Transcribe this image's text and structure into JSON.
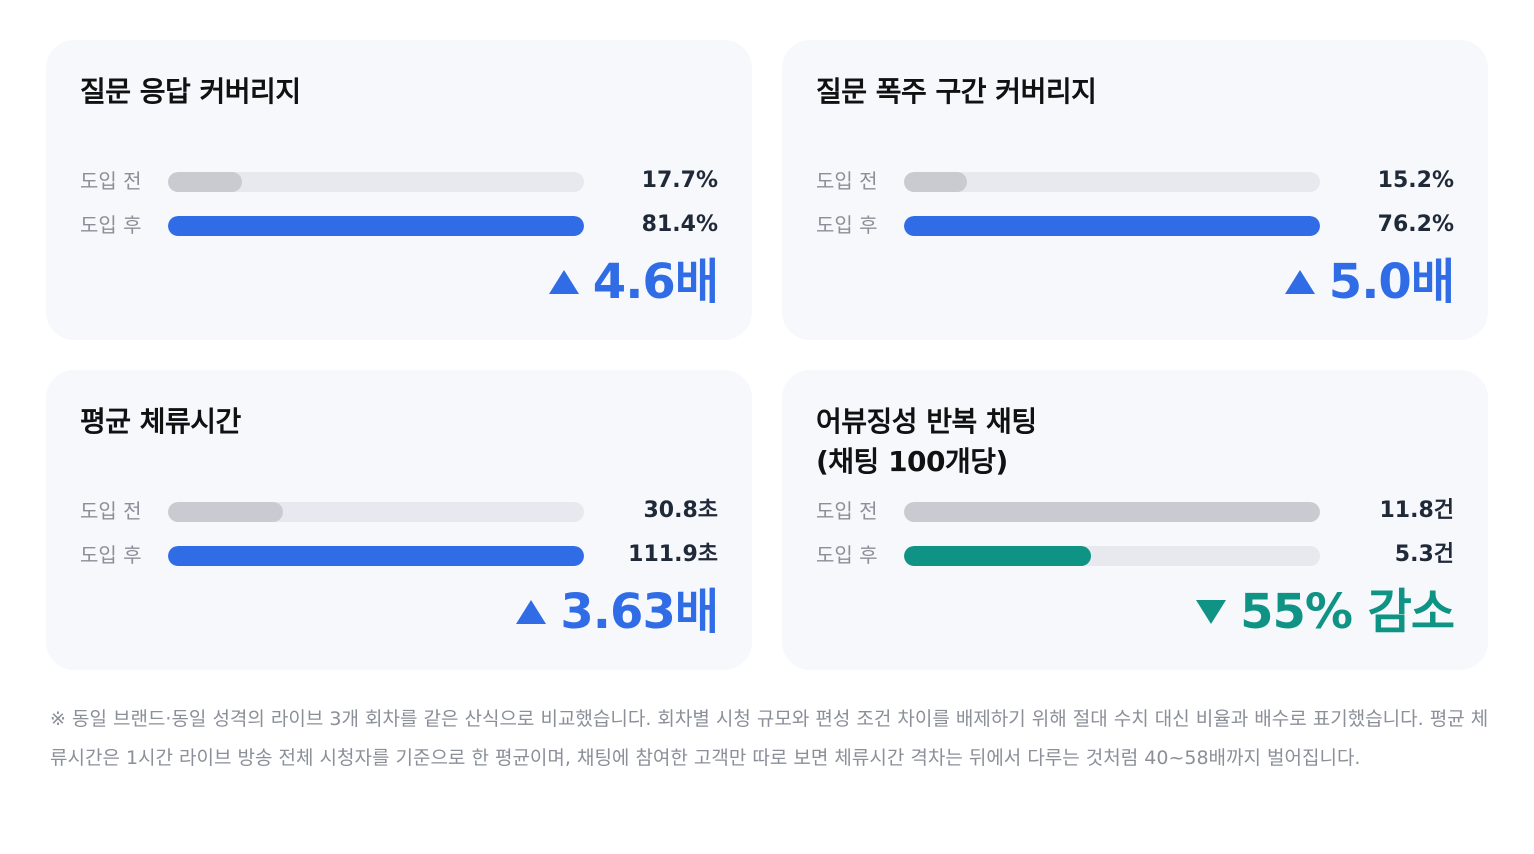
{
  "colors": {
    "increase": "#2f6ce5",
    "decrease": "#0f9384",
    "before": "#c9cbd1",
    "track": "#e7e9ee"
  },
  "chart_data": [
    {
      "type": "bar",
      "title": "질문 응답 커버리지",
      "categories": [
        "도입 전",
        "도입 후"
      ],
      "values": [
        17.7,
        81.4
      ],
      "value_labels": [
        "17.7%",
        "81.4%"
      ],
      "result": {
        "direction": "up",
        "text": "4.6배"
      }
    },
    {
      "type": "bar",
      "title": "질문 폭주 구간 커버리지",
      "categories": [
        "도입 전",
        "도입 후"
      ],
      "values": [
        15.2,
        76.2
      ],
      "value_labels": [
        "15.2%",
        "76.2%"
      ],
      "result": {
        "direction": "up",
        "text": "5.0배"
      }
    },
    {
      "type": "bar",
      "title": "평균 체류시간",
      "categories": [
        "도입 전",
        "도입 후"
      ],
      "values": [
        30.8,
        111.9
      ],
      "value_labels": [
        "30.8초",
        "111.9초"
      ],
      "result": {
        "direction": "up",
        "text": "3.63배"
      }
    },
    {
      "type": "bar",
      "title": "어뷰징성 반복 채팅\n(채팅 100개당)",
      "categories": [
        "도입 전",
        "도입 후"
      ],
      "values": [
        11.8,
        5.3
      ],
      "value_labels": [
        "11.8건",
        "5.3건"
      ],
      "result": {
        "direction": "down",
        "text": "55% 감소"
      }
    }
  ],
  "footnote": "※ 동일 브랜드·동일 성격의 라이브 3개 회차를 같은 산식으로 비교했습니다. 회차별 시청 규모와 편성 조건 차이를 배제하기 위해 절대 수치 대신 비율과 배수로 표기했습니다. 평균 체류시간은 1시간 라이브 방송 전체 시청자를 기준으로 한 평균이며, 채팅에 참여한 고객만 따로 보면 체류시간 격차는 뒤에서 다루는 것처럼 40~58배까지 벌어집니다."
}
